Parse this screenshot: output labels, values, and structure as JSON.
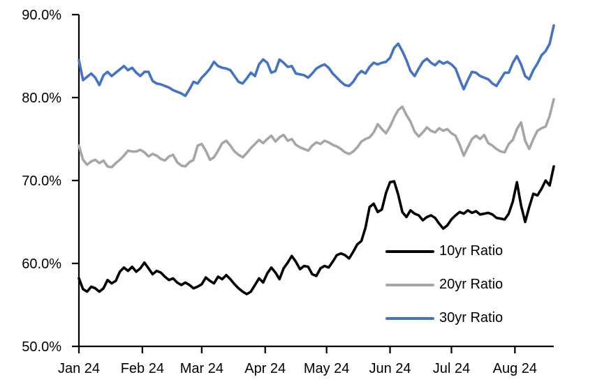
{
  "chart_data": {
    "type": "line",
    "title": "",
    "x_axis": {
      "tick_labels": [
        "Jan 24",
        "Feb 24",
        "Mar 24",
        "Apr 24",
        "May 24",
        "Jun 24",
        "Jul 24",
        "Aug 24"
      ],
      "tick_positions_days": [
        0,
        31,
        60,
        91,
        121,
        152,
        182,
        213
      ],
      "range_days": [
        0,
        232
      ],
      "grid": false
    },
    "y_axis": {
      "tick_labels": [
        "50.0%",
        "60.0%",
        "70.0%",
        "80.0%",
        "90.0%"
      ],
      "tick_values": [
        50,
        60,
        70,
        80,
        90
      ],
      "range": [
        50,
        90
      ],
      "unit": "%",
      "grid": false
    },
    "sample_step_days": 2,
    "legend_position": "inside-right",
    "series": [
      {
        "name": "10yr Ratio",
        "color": "#000000",
        "values": [
          58.2,
          56.9,
          56.6,
          57.2,
          57.0,
          56.6,
          57.0,
          58.0,
          57.6,
          57.9,
          59.0,
          59.5,
          59.1,
          59.6,
          59.0,
          59.4,
          60.1,
          59.4,
          58.7,
          59.1,
          58.9,
          58.4,
          58.0,
          58.2,
          57.7,
          57.4,
          57.7,
          57.4,
          57.0,
          57.2,
          57.5,
          58.3,
          57.9,
          57.6,
          58.4,
          58.1,
          58.6,
          58.1,
          57.5,
          57.0,
          56.6,
          56.3,
          56.6,
          57.4,
          58.2,
          57.7,
          58.8,
          59.5,
          58.9,
          58.1,
          59.4,
          60.1,
          60.9,
          60.2,
          59.3,
          59.7,
          59.6,
          58.7,
          58.5,
          59.4,
          59.7,
          59.5,
          60.2,
          61.0,
          61.2,
          61.0,
          60.6,
          61.4,
          62.3,
          62.7,
          64.3,
          66.8,
          67.2,
          66.2,
          66.5,
          68.5,
          69.8,
          69.9,
          68.3,
          66.2,
          65.6,
          66.4,
          66.0,
          65.8,
          65.2,
          65.6,
          65.8,
          65.5,
          64.8,
          64.2,
          64.6,
          65.3,
          65.8,
          66.2,
          66.0,
          66.4,
          66.1,
          66.3,
          65.9,
          66.0,
          66.1,
          65.9,
          65.5,
          65.4,
          65.3,
          66.0,
          67.5,
          69.8,
          67.0,
          65.0,
          66.8,
          68.4,
          68.2,
          69.0,
          70.0,
          69.4,
          71.7
        ]
      },
      {
        "name": "20yr Ratio",
        "color": "#A6A6A6",
        "values": [
          74.2,
          72.5,
          71.9,
          72.3,
          72.5,
          72.1,
          72.4,
          71.7,
          71.6,
          72.1,
          72.5,
          73.0,
          73.6,
          73.5,
          73.5,
          73.7,
          73.4,
          72.9,
          73.2,
          73.0,
          72.6,
          72.4,
          72.9,
          73.1,
          72.2,
          71.8,
          71.7,
          72.2,
          72.5,
          74.2,
          74.4,
          73.6,
          72.5,
          72.8,
          73.6,
          74.5,
          74.8,
          74.2,
          73.5,
          73.1,
          72.8,
          73.3,
          73.9,
          74.4,
          74.9,
          74.5,
          75.0,
          75.4,
          74.7,
          75.2,
          75.5,
          74.8,
          75.0,
          74.3,
          74.0,
          73.8,
          73.6,
          74.2,
          74.6,
          74.4,
          74.8,
          74.6,
          74.3,
          74.1,
          73.8,
          73.4,
          73.2,
          73.5,
          74.0,
          74.7,
          75.0,
          75.2,
          75.8,
          76.8,
          76.2,
          75.7,
          76.5,
          77.6,
          78.5,
          78.9,
          77.9,
          77.1,
          75.9,
          75.3,
          75.8,
          76.4,
          76.0,
          75.8,
          76.3,
          76.0,
          76.2,
          75.7,
          75.4,
          74.3,
          73.0,
          74.0,
          75.0,
          75.4,
          75.0,
          75.5,
          74.5,
          74.2,
          73.8,
          73.5,
          73.4,
          74.4,
          74.9,
          76.2,
          77.0,
          74.8,
          73.8,
          75.0,
          76.0,
          76.3,
          76.5,
          77.8,
          79.8
        ]
      },
      {
        "name": "30yr Ratio",
        "color": "#4472C4",
        "values": [
          84.5,
          82.1,
          82.5,
          82.9,
          82.4,
          81.5,
          82.7,
          83.1,
          82.6,
          83.0,
          83.4,
          83.8,
          83.3,
          83.6,
          83.0,
          82.6,
          83.1,
          83.1,
          82.0,
          81.7,
          81.6,
          81.4,
          81.2,
          80.9,
          80.7,
          80.5,
          80.2,
          81.0,
          81.9,
          81.7,
          82.4,
          82.9,
          83.5,
          84.3,
          83.8,
          83.6,
          83.5,
          83.3,
          82.6,
          81.9,
          81.7,
          82.3,
          83.0,
          82.6,
          84.0,
          84.6,
          84.2,
          83.0,
          83.2,
          84.6,
          84.2,
          83.7,
          83.8,
          82.9,
          82.8,
          82.7,
          82.4,
          82.9,
          83.5,
          83.8,
          84.0,
          83.6,
          82.9,
          82.4,
          81.9,
          81.5,
          81.4,
          81.9,
          82.7,
          83.2,
          82.9,
          83.7,
          84.2,
          84.0,
          84.2,
          84.3,
          84.8,
          86.0,
          86.5,
          85.6,
          84.5,
          83.2,
          82.6,
          83.5,
          84.3,
          84.7,
          84.2,
          83.9,
          84.4,
          84.1,
          84.3,
          84.0,
          83.5,
          82.2,
          81.0,
          82.1,
          83.1,
          83.0,
          82.6,
          82.4,
          82.2,
          81.7,
          81.4,
          82.2,
          83.0,
          83.0,
          84.2,
          85.0,
          84.0,
          82.6,
          82.2,
          83.3,
          84.1,
          85.1,
          85.6,
          86.5,
          88.7
        ]
      }
    ]
  },
  "colors": {
    "axis": "#000000",
    "background": "#FFFFFF",
    "tick_label": "#000000"
  }
}
